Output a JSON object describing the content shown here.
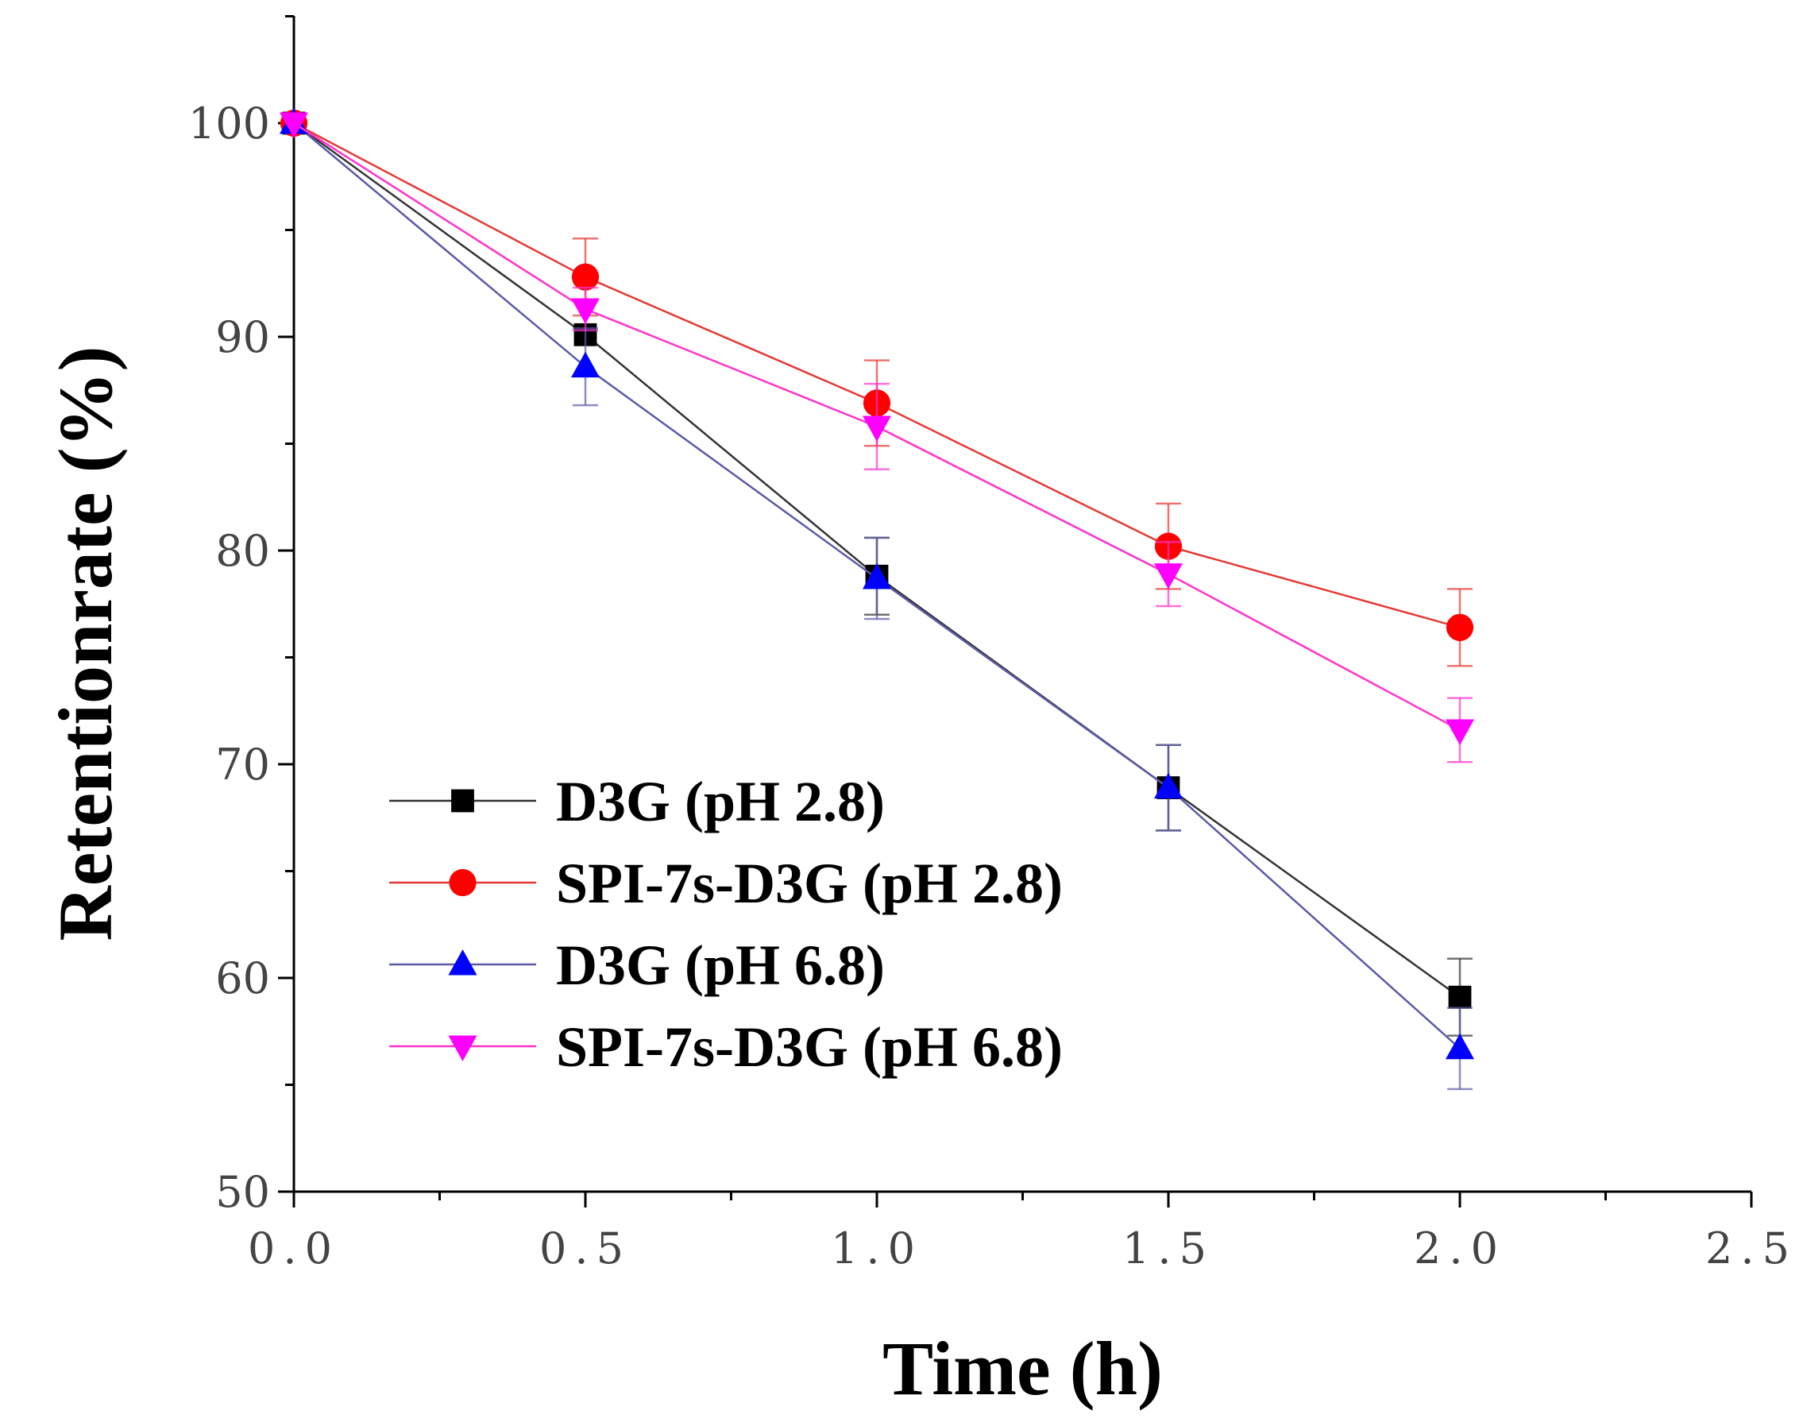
{
  "chart_data": {
    "type": "line",
    "title": "",
    "xlabel": "Time (h)",
    "ylabel": "Retentionrate (%)",
    "xlim": [
      0,
      2.5
    ],
    "ylim": [
      50,
      105
    ],
    "x_ticks": [
      "0.0",
      "0.5",
      "1.0",
      "1.5",
      "2.0",
      "2.5"
    ],
    "x_tick_values": [
      0,
      0.5,
      1.0,
      1.5,
      2.0,
      2.5
    ],
    "y_ticks": [
      "50",
      "60",
      "70",
      "80",
      "90",
      "100"
    ],
    "y_tick_values": [
      50,
      60,
      70,
      80,
      90,
      100
    ],
    "grid": false,
    "legend_position": "lower-left",
    "x": [
      0,
      0.5,
      1.0,
      1.5,
      2.0
    ],
    "series": [
      {
        "name": "D3G (pH 2.8)",
        "marker": "square",
        "color": "#000000",
        "line_color": "#333333",
        "values": [
          100,
          90.1,
          78.8,
          68.9,
          59.1
        ],
        "errors": [
          0,
          0,
          1.8,
          2.0,
          1.8
        ]
      },
      {
        "name": "SPI-7s-D3G (pH 2.8)",
        "marker": "circle",
        "color": "#ff0000",
        "line_color": "#e53935",
        "values": [
          100,
          92.8,
          86.9,
          80.2,
          76.4
        ],
        "errors": [
          0,
          1.8,
          2.0,
          2.0,
          1.8
        ]
      },
      {
        "name": "D3G (pH 6.8)",
        "marker": "triangle-up",
        "color": "#0000ff",
        "line_color": "#5b5ba8",
        "values": [
          100,
          88.6,
          78.7,
          68.9,
          56.7
        ],
        "errors": [
          0,
          1.8,
          1.9,
          2.0,
          1.9
        ]
      },
      {
        "name": "SPI-7s-D3G (pH 6.8)",
        "marker": "triangle-down",
        "color": "#ff00ff",
        "line_color": "#ff33cc",
        "values": [
          100,
          91.3,
          85.8,
          78.9,
          71.6
        ],
        "errors": [
          0,
          1.0,
          2.0,
          1.5,
          1.5
        ]
      }
    ]
  }
}
